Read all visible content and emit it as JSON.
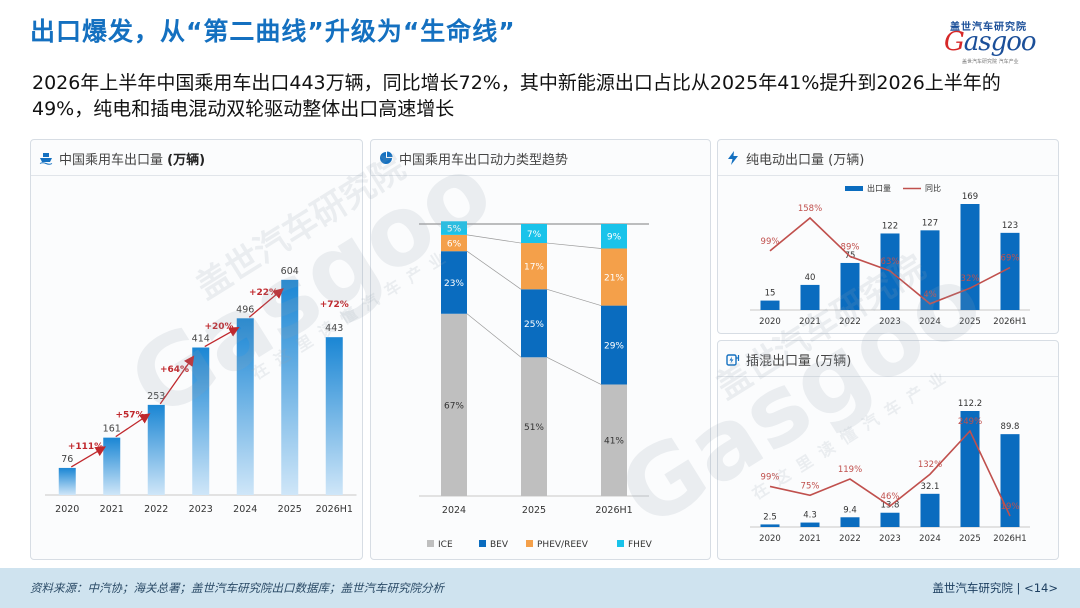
{
  "title": "出口爆发，从“第二曲线”升级为“生命线”",
  "subtitle": "2026年上半年中国乘用车出口443万辆，同比增长72%，其中新能源出口占比从2025年41%提升到2026上半年的49%，纯电和插电混动双轮驱动整体出口高速增长",
  "logo": {
    "cn": "盖世汽车研究院",
    "en_g": "G",
    "en_rest": "asgoo",
    "sub": "盖世汽车研究院 汽车产业"
  },
  "watermark": {
    "brand_cn": "盖世汽车研究院",
    "brand_en": "Gasgoo",
    "tagline": "在这里读懂汽车产业"
  },
  "panels": {
    "exports": {
      "title": "中国乘用车出口量",
      "unit": "(万辆)",
      "icon": "ship-icon"
    },
    "powertrain": {
      "title": "中国乘用车出口动力类型趋势",
      "icon": "pie-chart-icon"
    },
    "bev": {
      "title": "纯电动出口量",
      "unit": "(万辆)",
      "icon": "lightning-icon"
    },
    "phev": {
      "title": "插混出口量",
      "unit": "(万辆)",
      "icon": "plug-icon"
    }
  },
  "footer": {
    "source": "资料来源：中汽协；海关总署；盖世汽车研究院出口数据库；盖世汽车研究院分析",
    "org": "盖世汽车研究院",
    "page": "<14>"
  },
  "chart_data": [
    {
      "id": "exports",
      "type": "bar",
      "title": "中国乘用车出口量 (万辆)",
      "categories": [
        "2020",
        "2021",
        "2022",
        "2023",
        "2024",
        "2025",
        "2026H1"
      ],
      "values": [
        76,
        161,
        253,
        414,
        496,
        604,
        443
      ],
      "growth_labels": [
        "+111%",
        "+57%",
        "+64%",
        "+20%",
        "+22%",
        "+72%"
      ],
      "ylim": [
        0,
        640
      ],
      "colors": {
        "bar_top": "#1a86d4",
        "bar_bottom": "#cfe6f8",
        "growth": "#c0282d"
      }
    },
    {
      "id": "powertrain",
      "type": "bar",
      "stacked": true,
      "title": "中国乘用车出口动力类型趋势",
      "categories": [
        "2024",
        "2025",
        "2026H1"
      ],
      "series": [
        {
          "name": "ICE",
          "values": [
            67,
            51,
            41
          ],
          "color": "#bfbfbf"
        },
        {
          "name": "BEV",
          "values": [
            23,
            25,
            29
          ],
          "color": "#0a6cbf"
        },
        {
          "name": "PHEV/REEV",
          "values": [
            6,
            17,
            21
          ],
          "color": "#f4a04a"
        },
        {
          "name": "FHEV",
          "values": [
            5,
            7,
            9
          ],
          "color": "#19c3ea"
        }
      ],
      "labels": [
        "67%",
        "23%",
        "6%",
        "5%",
        "51%",
        "25%",
        "17%",
        "7%",
        "41%",
        "29%",
        "21%",
        "9%"
      ],
      "legend_position": "bottom"
    },
    {
      "id": "bev",
      "type": "bar",
      "title": "纯电动出口量 (万辆)",
      "categories": [
        "2020",
        "2021",
        "2022",
        "2023",
        "2024",
        "2025",
        "2026H1"
      ],
      "series": [
        {
          "name": "出口量",
          "type": "bar",
          "values": [
            15,
            40,
            75,
            122,
            127,
            169,
            123
          ],
          "labels": [
            "15",
            "40",
            "75",
            "122",
            "127",
            "169",
            "123"
          ],
          "color": "#0a6cbf"
        },
        {
          "name": "同比",
          "type": "line",
          "values": [
            99,
            158,
            89,
            63,
            4,
            32,
            69
          ],
          "labels": [
            "99%",
            "158%",
            "89%",
            "63%",
            "4%",
            "32%",
            "69%"
          ],
          "color": "#c0504d"
        }
      ],
      "legend_position": "top-right"
    },
    {
      "id": "phev",
      "type": "bar",
      "title": "插混出口量 (万辆)",
      "categories": [
        "2020",
        "2021",
        "2022",
        "2023",
        "2024",
        "2025",
        "2026H1"
      ],
      "series": [
        {
          "name": "出口量",
          "type": "bar",
          "values": [
            2.5,
            4.3,
            9.4,
            13.8,
            32.1,
            112.2,
            89.8
          ],
          "labels": [
            "2.5",
            "4.3",
            "9.4",
            "13.8",
            "32.1",
            "112.2",
            "89.8"
          ],
          "color": "#0a6cbf"
        },
        {
          "name": "同比",
          "type": "line",
          "values": [
            99,
            75,
            119,
            46,
            132,
            249,
            19
          ],
          "labels": [
            "99%",
            "75%",
            "119%",
            "46%",
            "132%",
            "249%",
            "19%"
          ],
          "color": "#c0504d"
        }
      ]
    }
  ]
}
